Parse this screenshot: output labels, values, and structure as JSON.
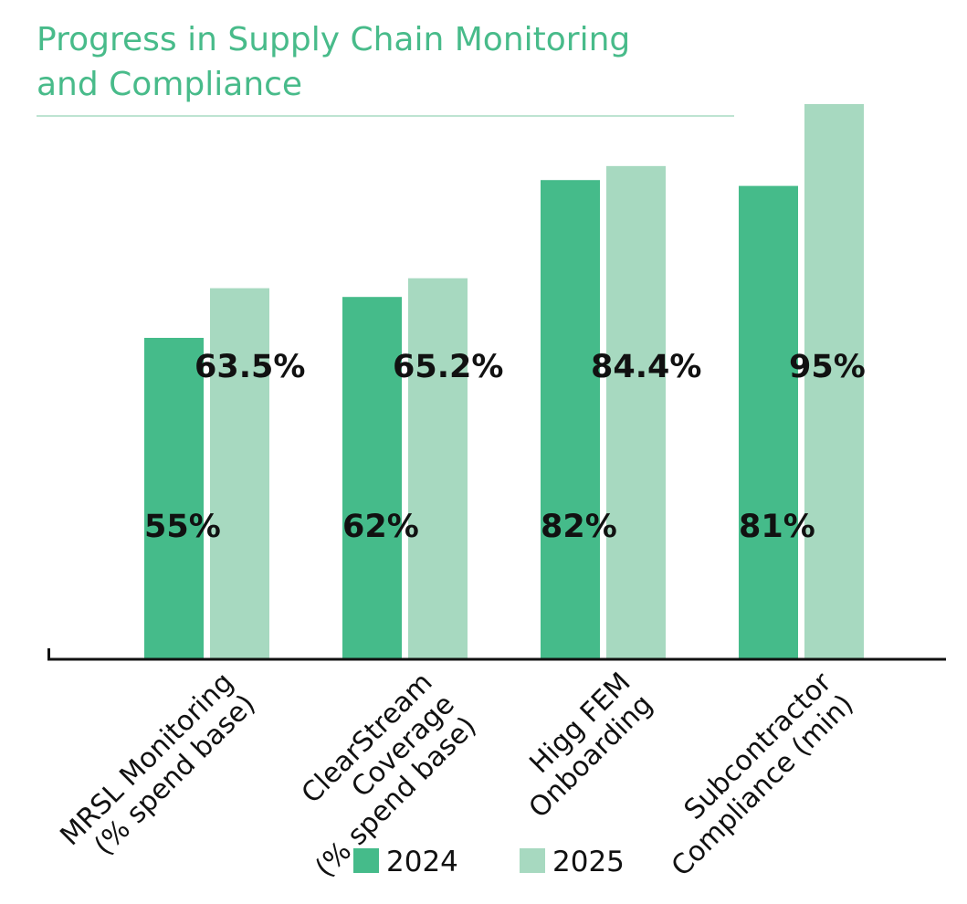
{
  "colors": {
    "accent": "#48bb8a",
    "series_2024": "#45bb8a",
    "series_2025": "#a7d9c0",
    "axis": "#111111",
    "text": "#111111",
    "title_rule": "#a9dcc4"
  },
  "chart_data": {
    "type": "bar",
    "title": "Progress in Supply Chain Monitoring and Compliance",
    "title_lines": [
      "Progress in Supply Chain Monitoring",
      "and Compliance"
    ],
    "categories": [
      "MRSL Monitoring (% spend base)",
      "ClearStream Coverage (% spend base)",
      "Higg FEM Onboarding",
      "Subcontractor Compliance (min)"
    ],
    "category_lines": [
      [
        "MRSL Monitoring",
        "(% spend base)"
      ],
      [
        "ClearStream",
        "Coverage",
        "(% spend base)"
      ],
      [
        "Higg FEM",
        "Onboarding"
      ],
      [
        "Subcontractor",
        "Compliance (min)"
      ]
    ],
    "series": [
      {
        "name": "2024",
        "values": [
          55,
          62,
          82,
          81
        ],
        "labels": [
          "55%",
          "62%",
          "82%",
          "81%"
        ]
      },
      {
        "name": "2025",
        "values": [
          63.5,
          65.2,
          84.4,
          95
        ],
        "labels": [
          "63.5%",
          "65.2%",
          "84.4%",
          "95%"
        ]
      }
    ],
    "xlabel": "",
    "ylabel": "",
    "ylim": [
      0,
      95
    ],
    "grid": false,
    "legend_position": "bottom"
  }
}
